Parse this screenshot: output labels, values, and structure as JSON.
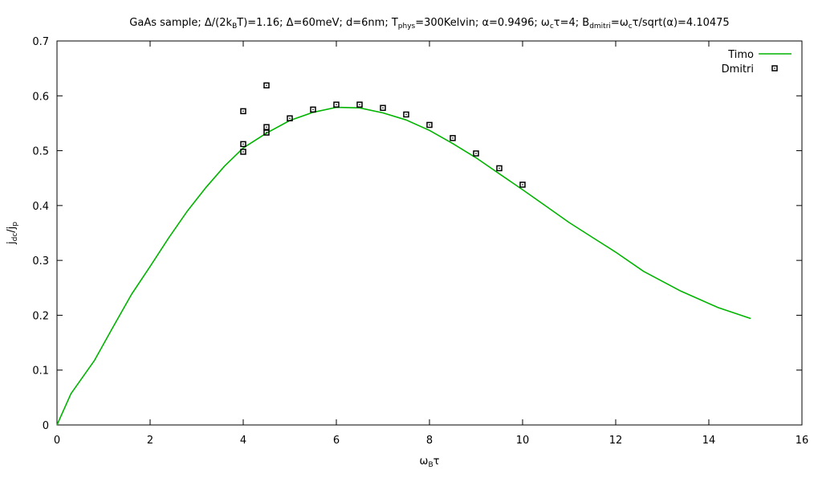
{
  "chart_data": {
    "type": "line",
    "title_parts": [
      {
        "t": "GaAs sample; Δ/(2k"
      },
      {
        "t": "B",
        "sub": true
      },
      {
        "t": "T)=1.16; Δ=60meV; d=6nm; T"
      },
      {
        "t": "phys",
        "sub": true
      },
      {
        "t": "=300Kelvin; α=0.9496; ω"
      },
      {
        "t": "c",
        "sub": true
      },
      {
        "t": "τ=4; B"
      },
      {
        "t": "dmitri",
        "sub": true
      },
      {
        "t": "=ω"
      },
      {
        "t": "c",
        "sub": true
      },
      {
        "t": "τ/sqrt(α)=4.10475"
      }
    ],
    "xlabel_parts": [
      {
        "t": "ω"
      },
      {
        "t": "B",
        "sub": true
      },
      {
        "t": "τ"
      }
    ],
    "ylabel_parts": [
      {
        "t": "j"
      },
      {
        "t": "dc",
        "sub": true
      },
      {
        "t": "/j"
      },
      {
        "t": "p",
        "sub": true
      }
    ],
    "xlim": [
      0,
      16
    ],
    "ylim": [
      0,
      0.7
    ],
    "xticks": [
      0,
      2,
      4,
      6,
      8,
      10,
      12,
      14,
      16
    ],
    "xtick_labels": [
      "0",
      "2",
      "4",
      "6",
      "8",
      "10",
      "12",
      "14",
      "16"
    ],
    "yticks": [
      0,
      0.1,
      0.2,
      0.3,
      0.4,
      0.5,
      0.6,
      0.7
    ],
    "ytick_labels": [
      "0",
      "0.1",
      "0.2",
      "0.3",
      "0.4",
      "0.5",
      "0.6",
      "0.7"
    ],
    "grid": false,
    "legend_position": "top-right",
    "series": [
      {
        "name": "Timo",
        "style": "line",
        "color": "#00b400",
        "x": [
          0,
          0.3,
          0.8,
          1.2,
          1.6,
          2.0,
          2.4,
          2.8,
          3.2,
          3.6,
          4.0,
          4.5,
          5.0,
          5.5,
          6.0,
          6.5,
          7.0,
          7.5,
          8.0,
          8.5,
          9.0,
          9.5,
          10.0,
          10.5,
          11.0,
          11.5,
          12.0,
          12.6,
          13.4,
          14.2,
          14.9
        ],
        "y": [
          0,
          0.057,
          0.117,
          0.178,
          0.238,
          0.289,
          0.341,
          0.39,
          0.433,
          0.472,
          0.505,
          0.532,
          0.555,
          0.57,
          0.579,
          0.578,
          0.569,
          0.556,
          0.537,
          0.513,
          0.487,
          0.458,
          0.429,
          0.399,
          0.369,
          0.342,
          0.315,
          0.28,
          0.244,
          0.214,
          0.194
        ]
      },
      {
        "name": "Dmitri",
        "style": "points",
        "color": "#000000",
        "x": [
          4.0,
          4.0,
          4.0,
          4.5,
          4.5,
          4.5,
          5.0,
          5.5,
          6.0,
          6.5,
          7.0,
          7.5,
          8.0,
          8.5,
          9.0,
          9.5,
          10.0
        ],
        "y": [
          0.572,
          0.512,
          0.498,
          0.619,
          0.543,
          0.533,
          0.559,
          0.575,
          0.584,
          0.584,
          0.578,
          0.566,
          0.547,
          0.523,
          0.495,
          0.468,
          0.438
        ]
      }
    ]
  }
}
